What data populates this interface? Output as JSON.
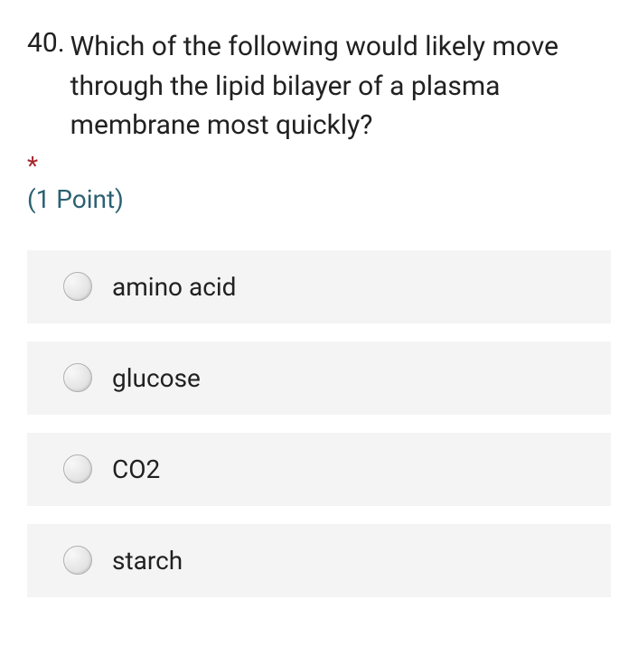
{
  "question": {
    "number": "40.",
    "text": "Which of the following would likely move through the lipid bilayer of a plasma membrane most quickly?",
    "required_marker": "*",
    "points_label": "(1 Point)"
  },
  "options": [
    {
      "label": "amino acid"
    },
    {
      "label": "glucose"
    },
    {
      "label": "CO2"
    },
    {
      "label": "starch"
    }
  ],
  "colors": {
    "text": "#212121",
    "required": "#a4262c",
    "points": "#2b6171",
    "option_bg": "#f4f4f4",
    "radio_border": "#b0b0b0",
    "background": "#ffffff"
  }
}
